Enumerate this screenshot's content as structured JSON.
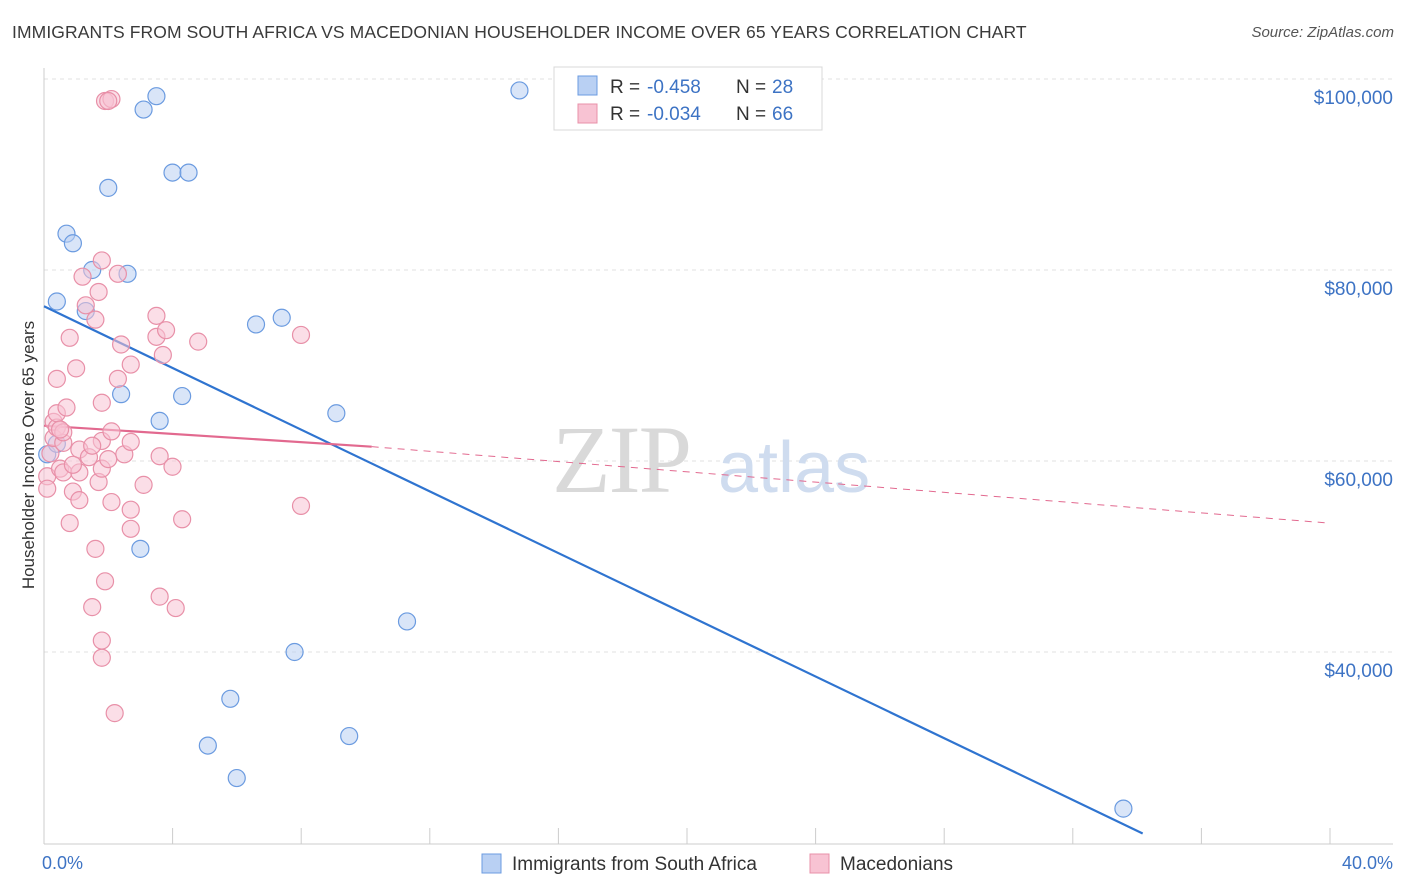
{
  "chart_data": {
    "type": "scatter",
    "title": "IMMIGRANTS FROM SOUTH AFRICA VS MACEDONIAN HOUSEHOLDER INCOME OVER 65 YEARS CORRELATION CHART",
    "source": "Source: ZipAtlas.com",
    "ylabel": "Householder Income Over 65 years",
    "x_tick_labels": [
      "0.0%",
      "40.0%"
    ],
    "y_tick_labels": [
      "$100,000",
      "$80,000",
      "$60,000",
      "$40,000"
    ],
    "y_ticks": [
      100000,
      80000,
      60000,
      40000
    ],
    "xlim": [
      0,
      42
    ],
    "ylim": [
      21000,
      102000
    ],
    "watermark": "ZIPatlas",
    "legend": {
      "rows": [
        {
          "r_label": "R =",
          "r_value": "-0.458",
          "n_label": "N =",
          "n_value": "28"
        },
        {
          "r_label": "R =",
          "r_value": "-0.034",
          "n_label": "N =",
          "n_value": "66"
        }
      ]
    },
    "series": [
      {
        "name": "Immigrants from South Africa",
        "color": "#6b9be0",
        "fill": "#b9d0f3",
        "points": [
          [
            0.4,
            76700
          ],
          [
            0.7,
            83800
          ],
          [
            0.9,
            82800
          ],
          [
            1.5,
            80000
          ],
          [
            2.6,
            79600
          ],
          [
            1.3,
            75700
          ],
          [
            2.0,
            88600
          ],
          [
            2.4,
            67000
          ],
          [
            3.1,
            96800
          ],
          [
            3.5,
            98200
          ],
          [
            4.0,
            90200
          ],
          [
            4.5,
            90200
          ],
          [
            3.6,
            64200
          ],
          [
            4.3,
            66800
          ],
          [
            6.6,
            74300
          ],
          [
            7.4,
            75000
          ],
          [
            9.1,
            65000
          ],
          [
            3.0,
            50800
          ],
          [
            11.3,
            43200
          ],
          [
            7.8,
            40000
          ],
          [
            5.8,
            35100
          ],
          [
            5.1,
            30200
          ],
          [
            9.5,
            31200
          ],
          [
            6.0,
            26800
          ],
          [
            14.8,
            98800
          ],
          [
            33.6,
            23600
          ],
          [
            0.1,
            60700
          ],
          [
            0.4,
            61800
          ]
        ]
      },
      {
        "name": "Macedonians",
        "color": "#e890a8",
        "fill": "#f8c3d3",
        "points": [
          [
            0.1,
            58400
          ],
          [
            0.1,
            57100
          ],
          [
            0.2,
            60800
          ],
          [
            0.3,
            62400
          ],
          [
            0.3,
            64100
          ],
          [
            0.4,
            63500
          ],
          [
            0.4,
            65000
          ],
          [
            0.5,
            59200
          ],
          [
            0.6,
            58800
          ],
          [
            0.6,
            61900
          ],
          [
            0.6,
            63000
          ],
          [
            0.7,
            65600
          ],
          [
            0.4,
            68600
          ],
          [
            0.8,
            53500
          ],
          [
            0.8,
            72900
          ],
          [
            0.9,
            56800
          ],
          [
            1.0,
            69700
          ],
          [
            1.1,
            58800
          ],
          [
            1.1,
            55900
          ],
          [
            1.1,
            61200
          ],
          [
            1.2,
            79300
          ],
          [
            1.3,
            76300
          ],
          [
            1.4,
            60400
          ],
          [
            1.5,
            44700
          ],
          [
            1.6,
            50800
          ],
          [
            1.6,
            74800
          ],
          [
            1.7,
            57800
          ],
          [
            1.8,
            66100
          ],
          [
            1.8,
            62100
          ],
          [
            1.8,
            59200
          ],
          [
            1.8,
            81000
          ],
          [
            1.9,
            47400
          ],
          [
            1.7,
            77700
          ],
          [
            1.8,
            41200
          ],
          [
            1.8,
            39400
          ],
          [
            1.9,
            97700
          ],
          [
            2.1,
            97900
          ],
          [
            2.0,
            97700
          ],
          [
            2.1,
            55700
          ],
          [
            2.1,
            63100
          ],
          [
            2.2,
            33600
          ],
          [
            2.3,
            79600
          ],
          [
            2.3,
            68600
          ],
          [
            2.4,
            72200
          ],
          [
            2.5,
            60700
          ],
          [
            2.7,
            54900
          ],
          [
            2.7,
            62000
          ],
          [
            2.7,
            70100
          ],
          [
            2.7,
            52900
          ],
          [
            3.1,
            57500
          ],
          [
            3.5,
            73000
          ],
          [
            3.5,
            75200
          ],
          [
            3.6,
            60500
          ],
          [
            3.6,
            45800
          ],
          [
            3.7,
            71100
          ],
          [
            3.8,
            73700
          ],
          [
            4.0,
            59400
          ],
          [
            4.1,
            44600
          ],
          [
            4.3,
            53900
          ],
          [
            4.8,
            72500
          ],
          [
            8.0,
            73200
          ],
          [
            8.0,
            55300
          ],
          [
            0.5,
            63300
          ],
          [
            1.5,
            61600
          ],
          [
            2.0,
            60200
          ],
          [
            0.9,
            59600
          ]
        ]
      }
    ],
    "trend_lines": [
      {
        "series": "Immigrants from South Africa",
        "x": [
          0,
          34.2
        ],
        "y": [
          76200,
          21000
        ],
        "style": "solid"
      },
      {
        "series": "Macedonians",
        "x": [
          0,
          10.2
        ],
        "y": [
          63700,
          61500
        ],
        "style": "solid"
      },
      {
        "series": "Macedonians",
        "x": [
          10.2,
          40
        ],
        "y": [
          61500,
          53500
        ],
        "style": "dashed"
      }
    ]
  }
}
